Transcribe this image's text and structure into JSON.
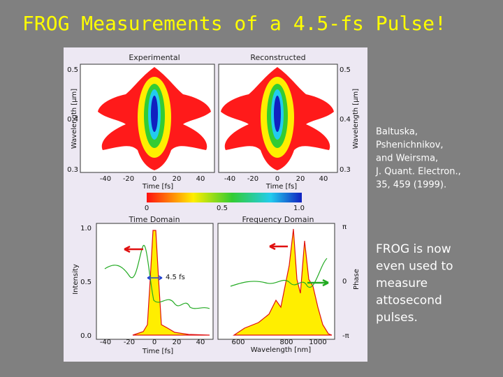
{
  "title": "FROG Measurements of a 4.5-fs Pulse!",
  "figure": {
    "top": {
      "left_title": "Experimental",
      "right_title": "Reconstructed",
      "y_label": "Wavelength [μm]",
      "y_ticks": [
        "0.5",
        "0.4",
        "0.3"
      ],
      "x_ticks": [
        "-40",
        "-20",
        "0",
        "20",
        "40"
      ],
      "x_label": "Time [fs]",
      "colorbar_ticks": [
        "0",
        "0.5",
        "1.0"
      ]
    },
    "time_domain": {
      "title": "Time Domain",
      "y_label": "Intensity",
      "y_ticks": [
        "1.0",
        "0.5",
        "0.0"
      ],
      "x_ticks": [
        "-40",
        "-20",
        "0",
        "20",
        "40"
      ],
      "x_label": "Time [fs]",
      "annotation": "4.5 fs"
    },
    "frequency_domain": {
      "title": "Frequency Domain",
      "y_label": "Phase",
      "y_ticks": [
        "π",
        "0",
        "-π"
      ],
      "x_ticks": [
        "600",
        "800",
        "1000"
      ],
      "x_label": "Wavelength [nm]"
    }
  },
  "citation": [
    "Baltuska,",
    "Pshenichnikov,",
    "and Weirsma,",
    "J. Quant. Electron.,",
    "35, 459 (1999)."
  ],
  "note": [
    "FROG is now",
    "even used to",
    "measure",
    "attosecond",
    "pulses."
  ]
}
